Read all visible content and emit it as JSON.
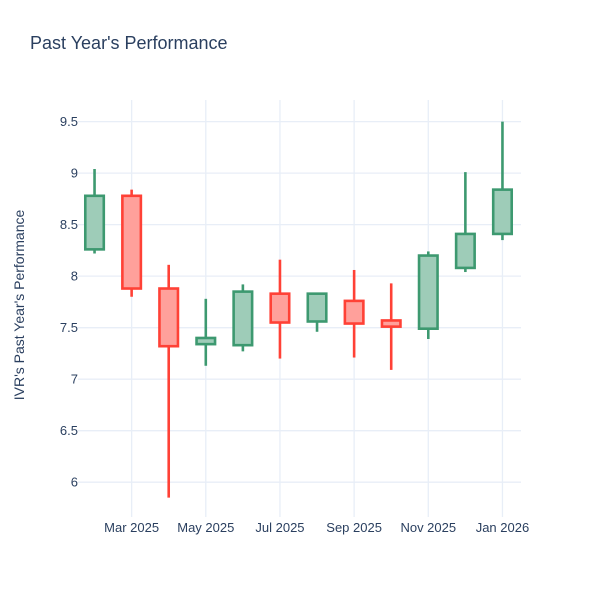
{
  "title": {
    "text": "Past Year's Performance"
  },
  "y_axis": {
    "title": "IVR's Past Year's Performance",
    "ticks": [
      6,
      6.5,
      7,
      7.5,
      8,
      8.5,
      9,
      9.5
    ],
    "range": [
      5.73,
      9.71
    ]
  },
  "x_axis": {
    "tick_labels": [
      "Mar 2025",
      "May 2025",
      "Jul 2025",
      "Sep 2025",
      "Nov 2025",
      "Jan 2026"
    ],
    "tick_indices": [
      1,
      3,
      5,
      7,
      9,
      11
    ]
  },
  "colors": {
    "background": "#ffffff",
    "text": "#2a3f5f",
    "grid": "#e8eef7",
    "increasing_line": "#3d9970",
    "increasing_fill": "#9eccb8",
    "decreasing_line": "#ff4136",
    "decreasing_fill": "#ffa09b"
  },
  "chart_data": {
    "type": "candlestick",
    "title": "Past Year's Performance",
    "xlabel": "",
    "ylabel": "IVR's Past Year's Performance",
    "categories": [
      "Feb 2025",
      "Mar 2025",
      "Apr 2025",
      "May 2025",
      "Jun 2025",
      "Jul 2025",
      "Aug 2025",
      "Sep 2025",
      "Oct 2025",
      "Nov 2025",
      "Dec 2025",
      "Jan 2026"
    ],
    "open": [
      8.26,
      8.78,
      7.88,
      7.34,
      7.33,
      7.83,
      7.56,
      7.76,
      7.57,
      7.49,
      8.08,
      8.41
    ],
    "high": [
      9.04,
      8.84,
      8.11,
      7.78,
      7.92,
      8.16,
      7.84,
      8.06,
      7.93,
      8.24,
      9.01,
      9.5
    ],
    "low": [
      8.22,
      7.8,
      5.85,
      7.13,
      7.27,
      7.2,
      7.46,
      7.21,
      7.09,
      7.39,
      8.04,
      8.35
    ],
    "close": [
      8.78,
      7.88,
      7.32,
      7.4,
      7.85,
      7.55,
      7.83,
      7.54,
      7.51,
      8.2,
      8.41,
      8.84
    ],
    "ylim": [
      5.73,
      9.71
    ],
    "grid": true,
    "legend": "none"
  }
}
